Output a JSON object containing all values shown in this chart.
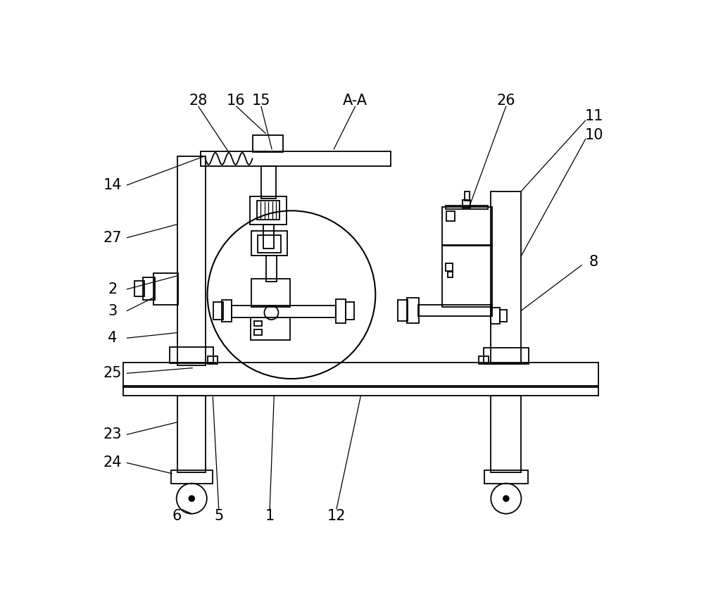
{
  "bg": "#ffffff",
  "lc": "#000000",
  "fig_w": 10.0,
  "fig_h": 8.58,
  "dpi": 100
}
